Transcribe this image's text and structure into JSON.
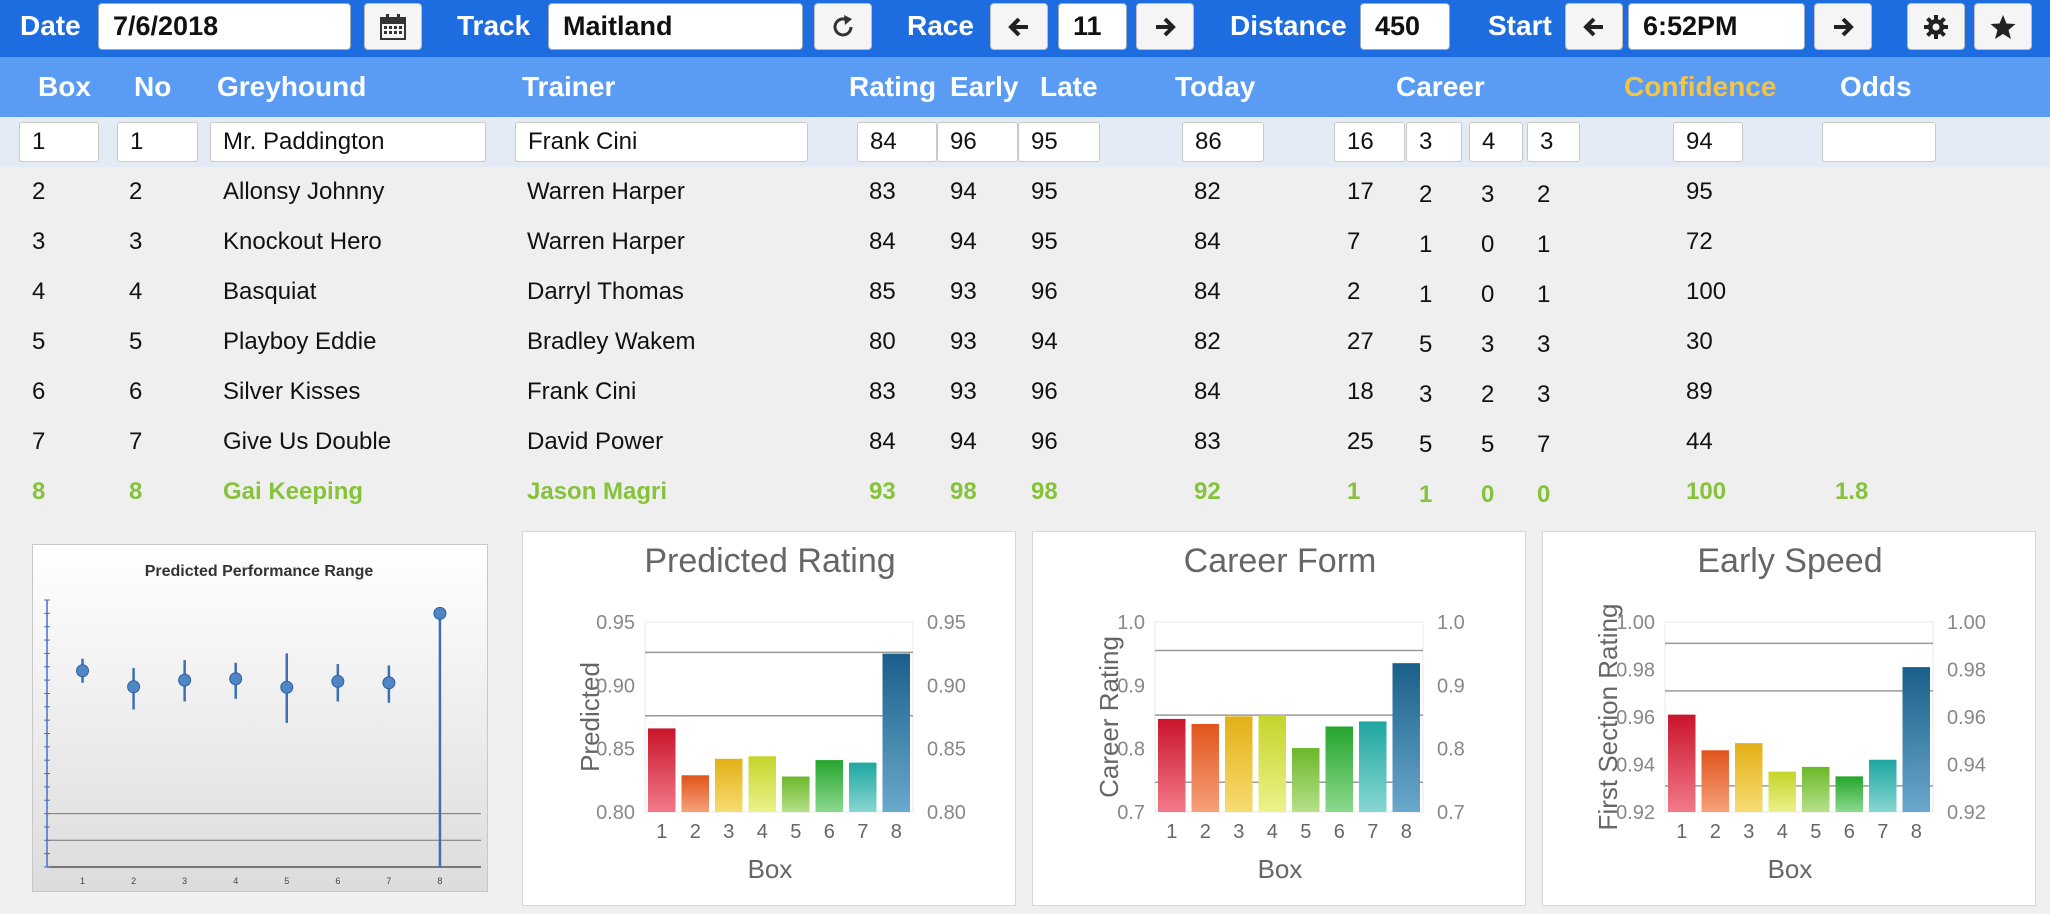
{
  "toolbar": {
    "date_label": "Date",
    "date_value": "7/6/2018",
    "track_label": "Track",
    "track_value": "Maitland",
    "race_label": "Race",
    "race_value": "11",
    "distance_label": "Distance",
    "distance_value": "450",
    "start_label": "Start",
    "start_value": "6:52PM",
    "icons": [
      "calendar-icon",
      "refresh-icon",
      "arrow-left-icon",
      "arrow-right-icon",
      "gear-icon",
      "star-icon"
    ],
    "colors": {
      "bar": "#1e6de0",
      "header": "#5a9cf3",
      "confidence": "#f6c445",
      "winner": "#86c23a"
    }
  },
  "table": {
    "headers": {
      "box": "Box",
      "no": "No",
      "greyhound": "Greyhound",
      "trainer": "Trainer",
      "rating": "Rating",
      "early": "Early",
      "late": "Late",
      "today": "Today",
      "career": "Career",
      "confidence": "Confidence",
      "odds": "Odds"
    },
    "rows": [
      {
        "box": "1",
        "no": "1",
        "greyhound": "Mr. Paddington",
        "trainer": "Frank Cini",
        "rating": "84",
        "early": "96",
        "late": "95",
        "today": "86",
        "c1": "16",
        "c2": "3",
        "c3": "4",
        "c4": "3",
        "confidence": "94",
        "odds": ""
      },
      {
        "box": "2",
        "no": "2",
        "greyhound": "Allonsy Johnny",
        "trainer": "Warren Harper",
        "rating": "83",
        "early": "94",
        "late": "95",
        "today": "82",
        "c1": "17",
        "c2": "2",
        "c3": "3",
        "c4": "2",
        "confidence": "95",
        "odds": ""
      },
      {
        "box": "3",
        "no": "3",
        "greyhound": "Knockout Hero",
        "trainer": "Warren Harper",
        "rating": "84",
        "early": "94",
        "late": "95",
        "today": "84",
        "c1": "7",
        "c2": "1",
        "c3": "0",
        "c4": "1",
        "confidence": "72",
        "odds": ""
      },
      {
        "box": "4",
        "no": "4",
        "greyhound": "Basquiat",
        "trainer": "Darryl Thomas",
        "rating": "85",
        "early": "93",
        "late": "96",
        "today": "84",
        "c1": "2",
        "c2": "1",
        "c3": "0",
        "c4": "1",
        "confidence": "100",
        "odds": ""
      },
      {
        "box": "5",
        "no": "5",
        "greyhound": "Playboy Eddie",
        "trainer": "Bradley Wakem",
        "rating": "80",
        "early": "93",
        "late": "94",
        "today": "82",
        "c1": "27",
        "c2": "5",
        "c3": "3",
        "c4": "3",
        "confidence": "30",
        "odds": ""
      },
      {
        "box": "6",
        "no": "6",
        "greyhound": "Silver Kisses",
        "trainer": "Frank Cini",
        "rating": "83",
        "early": "93",
        "late": "96",
        "today": "84",
        "c1": "18",
        "c2": "3",
        "c3": "2",
        "c4": "3",
        "confidence": "89",
        "odds": ""
      },
      {
        "box": "7",
        "no": "7",
        "greyhound": "Give Us Double",
        "trainer": "David Power",
        "rating": "84",
        "early": "94",
        "late": "96",
        "today": "83",
        "c1": "25",
        "c2": "5",
        "c3": "5",
        "c4": "7",
        "confidence": "44",
        "odds": ""
      },
      {
        "box": "8",
        "no": "8",
        "greyhound": "Gai Keeping",
        "trainer": "Jason Magri",
        "rating": "93",
        "early": "98",
        "late": "98",
        "today": "92",
        "c1": "1",
        "c2": "1",
        "c3": "0",
        "c4": "0",
        "confidence": "100",
        "odds": "1.8"
      }
    ]
  },
  "chart_data": [
    {
      "type": "scatter",
      "title": "Predicted Performance Range",
      "x": [
        "1",
        "2",
        "3",
        "4",
        "5",
        "6",
        "7",
        "8"
      ],
      "y": [
        0.735,
        0.675,
        0.7,
        0.705,
        0.673,
        0.695,
        0.69,
        0.95
      ],
      "y_low": [
        0.69,
        0.59,
        0.62,
        0.63,
        0.54,
        0.62,
        0.615,
        0.0
      ],
      "y_high": [
        0.78,
        0.745,
        0.775,
        0.765,
        0.8,
        0.76,
        0.755,
        0.95
      ],
      "ylim": [
        0,
        1
      ]
    },
    {
      "type": "bar",
      "title": "Predicted Rating",
      "xlabel": "Box",
      "ylabel": "Predicted",
      "categories": [
        "1",
        "2",
        "3",
        "4",
        "5",
        "6",
        "7",
        "8"
      ],
      "values": [
        0.866,
        0.829,
        0.842,
        0.844,
        0.828,
        0.841,
        0.839,
        0.925
      ],
      "ylim": [
        0.8,
        0.95
      ],
      "yticks": [
        "0.80",
        "0.85",
        "0.90",
        "0.95"
      ],
      "reference_lines": [
        0.876,
        0.926
      ]
    },
    {
      "type": "bar",
      "title": "Career Form",
      "xlabel": "Box",
      "ylabel": "Career Rating",
      "categories": [
        "1",
        "2",
        "3",
        "4",
        "5",
        "6",
        "7",
        "8"
      ],
      "values": [
        0.847,
        0.839,
        0.851,
        0.853,
        0.801,
        0.835,
        0.843,
        0.935
      ],
      "ylim": [
        0.7,
        1.0
      ],
      "yticks": [
        "0.7",
        "0.8",
        "0.9",
        "1.0"
      ],
      "reference_lines": [
        0.747,
        0.853,
        0.955
      ]
    },
    {
      "type": "bar",
      "title": "Early Speed",
      "xlabel": "Box",
      "ylabel": "First Section Rating",
      "categories": [
        "1",
        "2",
        "3",
        "4",
        "5",
        "6",
        "7",
        "8"
      ],
      "values": [
        0.961,
        0.946,
        0.949,
        0.937,
        0.939,
        0.935,
        0.942,
        0.981
      ],
      "ylim": [
        0.92,
        1.0
      ],
      "yticks": [
        "0.92",
        "0.94",
        "0.96",
        "0.98",
        "1.00"
      ],
      "reference_lines": [
        0.931,
        0.971,
        0.991
      ]
    }
  ]
}
